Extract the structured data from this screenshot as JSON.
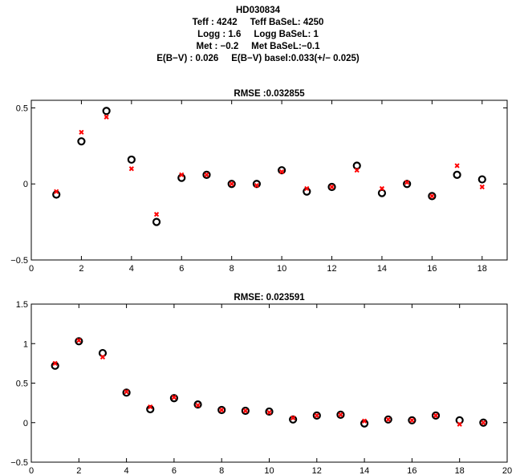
{
  "header": {
    "star": "HD030834",
    "line1": "Teff : 4242     Teff BaSeL: 4250",
    "line2": "Logg : 1.6     Logg BaSeL: 1",
    "line3": "Met : −0.2     Met BaSeL:−0.1",
    "line4": "E(B−V) : 0.026     E(B−V) basel:0.033(+/− 0.025)"
  },
  "colors": {
    "circle": "#000000",
    "cross": "#ff0000"
  },
  "chart_data": [
    {
      "type": "scatter",
      "title": "RMSE :0.032855",
      "xlim": [
        0,
        19
      ],
      "ylim": [
        -0.5,
        0.55
      ],
      "xticks": [
        0,
        2,
        4,
        6,
        8,
        10,
        12,
        14,
        16,
        18
      ],
      "yticks": [
        -0.5,
        0,
        0.5
      ],
      "ytick_labels": [
        "−0.5",
        "0",
        "0.5"
      ],
      "x": [
        1,
        2,
        3,
        4,
        5,
        6,
        7,
        8,
        9,
        10,
        11,
        12,
        13,
        14,
        15,
        16,
        17,
        18
      ],
      "series": [
        {
          "marker": "circle",
          "color": "#000000",
          "values": [
            -0.07,
            0.28,
            0.48,
            0.16,
            -0.25,
            0.04,
            0.06,
            0.0,
            0.0,
            0.09,
            -0.05,
            -0.02,
            0.12,
            -0.06,
            0.0,
            -0.08,
            0.06,
            0.03
          ]
        },
        {
          "marker": "cross",
          "color": "#ff0000",
          "values": [
            -0.05,
            0.34,
            0.44,
            0.1,
            -0.2,
            0.06,
            0.06,
            0.0,
            -0.01,
            0.08,
            -0.03,
            -0.02,
            0.09,
            -0.03,
            0.01,
            -0.08,
            0.12,
            -0.02
          ]
        }
      ]
    },
    {
      "type": "scatter",
      "title": "RMSE: 0.023591",
      "xlim": [
        0,
        20
      ],
      "ylim": [
        -0.5,
        1.5
      ],
      "xticks": [
        0,
        2,
        4,
        6,
        8,
        10,
        12,
        14,
        16,
        18,
        20
      ],
      "yticks": [
        -0.5,
        0,
        0.5,
        1,
        1.5
      ],
      "ytick_labels": [
        "−0.5",
        "0",
        "0.5",
        "1",
        "1.5"
      ],
      "x": [
        1,
        2,
        3,
        4,
        5,
        6,
        7,
        8,
        9,
        10,
        11,
        12,
        13,
        14,
        15,
        16,
        17,
        18,
        19
      ],
      "series": [
        {
          "marker": "circle",
          "color": "#000000",
          "values": [
            0.72,
            1.03,
            0.88,
            0.38,
            0.17,
            0.31,
            0.23,
            0.16,
            0.15,
            0.14,
            0.04,
            0.09,
            0.1,
            -0.01,
            0.04,
            0.03,
            0.09,
            0.03,
            0.0
          ]
        },
        {
          "marker": "cross",
          "color": "#ff0000",
          "values": [
            0.75,
            1.04,
            0.83,
            0.39,
            0.2,
            0.32,
            0.22,
            0.16,
            0.15,
            0.13,
            0.06,
            0.09,
            0.1,
            0.02,
            0.04,
            0.03,
            0.09,
            -0.02,
            0.0
          ]
        }
      ]
    }
  ]
}
